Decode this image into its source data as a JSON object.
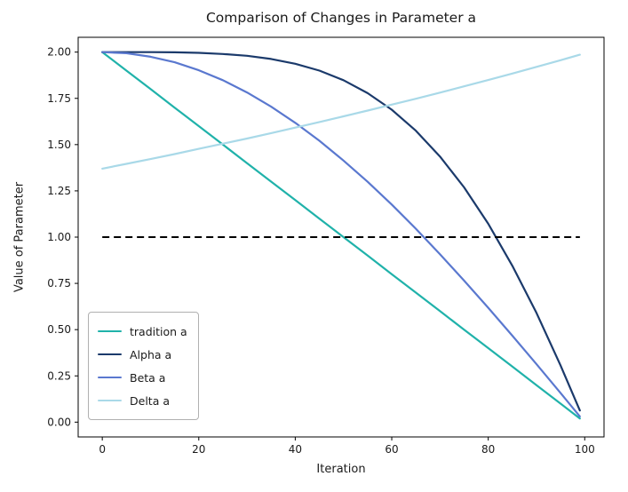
{
  "figure": {
    "background": "#ffffff",
    "text_color": "#1a1a1a"
  },
  "chart_data": {
    "type": "line",
    "title": "Comparison of Changes in Parameter a",
    "xlabel": "Iteration",
    "ylabel": "Value of Parameter",
    "grid": false,
    "xlim": [
      -5,
      104
    ],
    "ylim": [
      -0.08,
      2.08
    ],
    "xticks": [
      0,
      20,
      40,
      60,
      80,
      100
    ],
    "xtick_labels": [
      "0",
      "20",
      "40",
      "60",
      "80",
      "100"
    ],
    "yticks": [
      0.0,
      0.25,
      0.5,
      0.75,
      1.0,
      1.25,
      1.5,
      1.75,
      2.0
    ],
    "ytick_labels": [
      "0.00",
      "0.25",
      "0.50",
      "0.75",
      "1.00",
      "1.25",
      "1.50",
      "1.75",
      "2.00"
    ],
    "x": [
      0,
      5,
      10,
      15,
      20,
      25,
      30,
      35,
      40,
      45,
      50,
      55,
      60,
      65,
      70,
      75,
      80,
      85,
      90,
      95,
      99
    ],
    "series": [
      {
        "name": "tradition a",
        "color": "#20B2AA",
        "values": [
          2.0,
          1.9,
          1.8,
          1.7,
          1.6,
          1.5,
          1.4,
          1.3,
          1.2,
          1.1,
          1.0,
          0.9,
          0.8,
          0.7,
          0.6,
          0.5,
          0.4,
          0.3,
          0.2,
          0.1,
          0.02
        ]
      },
      {
        "name": "Alpha a",
        "color": "#1b3a6b",
        "values": [
          2.0,
          2.0,
          2.0,
          1.999,
          1.996,
          1.99,
          1.98,
          1.963,
          1.937,
          1.9,
          1.848,
          1.778,
          1.689,
          1.575,
          1.436,
          1.269,
          1.072,
          0.845,
          0.59,
          0.306,
          0.063
        ]
      },
      {
        "name": "Beta a",
        "color": "#5a78cf",
        "values": [
          2.0,
          1.994,
          1.975,
          1.945,
          1.902,
          1.848,
          1.782,
          1.705,
          1.618,
          1.521,
          1.414,
          1.299,
          1.176,
          1.045,
          0.908,
          0.765,
          0.618,
          0.467,
          0.313,
          0.157,
          0.031
        ]
      },
      {
        "name": "Delta a",
        "color": "#a9d9e8",
        "values": [
          1.37,
          1.396,
          1.422,
          1.449,
          1.477,
          1.505,
          1.533,
          1.562,
          1.592,
          1.622,
          1.653,
          1.684,
          1.716,
          1.748,
          1.781,
          1.815,
          1.849,
          1.884,
          1.92,
          1.956,
          1.986
        ]
      }
    ],
    "reference_line": {
      "y": 1.0,
      "x_start": 0,
      "x_end": 99,
      "style": "dashed",
      "color": "#000000"
    },
    "legend": {
      "position": "lower left",
      "entries": [
        "tradition a",
        "Alpha a",
        "Beta a",
        "Delta a"
      ]
    }
  }
}
